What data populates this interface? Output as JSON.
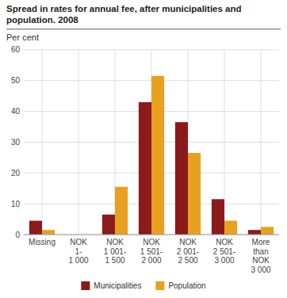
{
  "chart_data": {
    "type": "bar",
    "title": "Spread in rates for annual fee, after municipalities and\npopulation. 2008",
    "y_label": "Per cent",
    "categories": [
      "Missing",
      "NOK\n1-\n1 000",
      "NOK\n1 001-\n1 500",
      "NOK\n1 501-\n2 000",
      "NOK\n2 001-\n2 500",
      "NOK\n2 501-\n3 000",
      "More\nthan\nNOK\n3 000"
    ],
    "series": [
      {
        "name": "Municipalities",
        "color": "#8B1A1A",
        "values": [
          4.5,
          0,
          6.5,
          43,
          36.5,
          11.5,
          1.5
        ]
      },
      {
        "name": "Population",
        "color": "#E8A020",
        "values": [
          1.5,
          0,
          15.5,
          51.5,
          26.5,
          4.5,
          2.5
        ]
      }
    ],
    "ylim": [
      0,
      60
    ],
    "yticks": [
      0,
      10,
      20,
      30,
      40,
      50,
      60
    ],
    "grid": true,
    "legend": "bottom"
  }
}
